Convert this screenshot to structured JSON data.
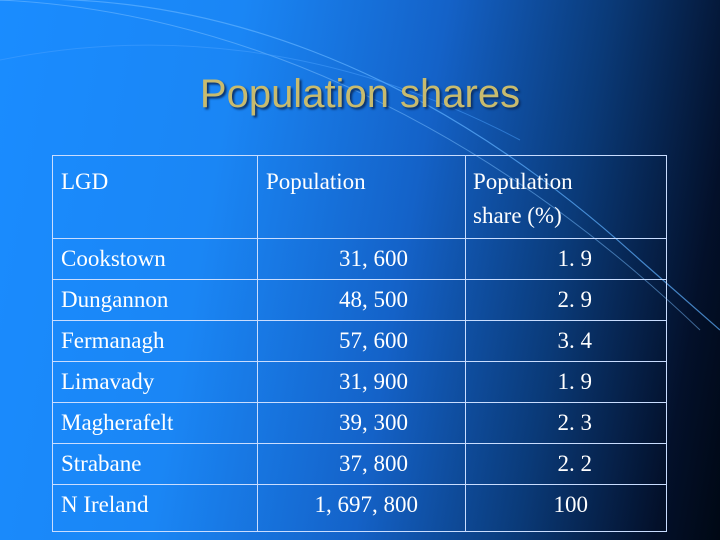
{
  "slide": {
    "title": "Population shares"
  },
  "table": {
    "headers": {
      "lgd": "LGD",
      "population": "Population",
      "share_line1": "Population",
      "share_line2": "share (%)"
    },
    "rows": [
      {
        "lgd": "Cookstown",
        "population": "31, 600",
        "share": "1. 9"
      },
      {
        "lgd": "Dungannon",
        "population": "48, 500",
        "share": "2. 9"
      },
      {
        "lgd": "Fermanagh",
        "population": "57, 600",
        "share": "3. 4"
      },
      {
        "lgd": "Limavady",
        "population": "31, 900",
        "share": "1. 9"
      },
      {
        "lgd": "Magherafelt",
        "population": "39, 300",
        "share": "2. 3"
      },
      {
        "lgd": "Strabane",
        "population": "37, 800",
        "share": "2. 2"
      },
      {
        "lgd": "N Ireland",
        "population": "1, 697, 800",
        "share": "100"
      }
    ]
  },
  "colors": {
    "title": "#c8bb6e",
    "text": "#ffffff",
    "background_left": "#1a8cff",
    "background_right": "#000814"
  }
}
